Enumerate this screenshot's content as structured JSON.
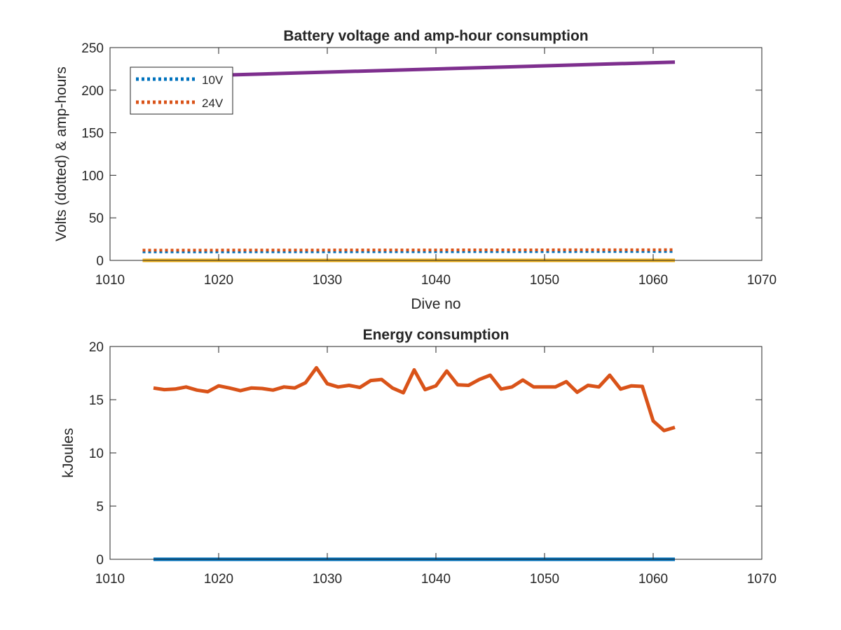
{
  "colors": {
    "blue": "#0072BD",
    "orange": "#D95319",
    "yellow": "#EDB120",
    "purple": "#7E2F8E",
    "axis": "#262626"
  },
  "chart_data": [
    {
      "type": "line",
      "title": "Battery voltage and amp-hour consumption",
      "xlabel": "Dive no",
      "ylabel": "Volts (dotted) & amp-hours",
      "xlim": [
        1010,
        1070
      ],
      "ylim": [
        0,
        250
      ],
      "xticks": [
        1010,
        1020,
        1030,
        1040,
        1050,
        1060,
        1070
      ],
      "yticks": [
        0,
        50,
        100,
        150,
        200,
        250
      ],
      "grid": false,
      "legend": {
        "position": "top-left",
        "entries": [
          "10V",
          "24V"
        ]
      },
      "series": [
        {
          "name": "10V",
          "color": "#0072BD",
          "style": "dotted",
          "x": [
            1013,
            1062
          ],
          "y": [
            10,
            10.5
          ]
        },
        {
          "name": "24V",
          "color": "#D95319",
          "style": "dotted",
          "x": [
            1013,
            1062
          ],
          "y": [
            12,
            12.5
          ]
        },
        {
          "color": "#EDB120",
          "style": "solid",
          "x": [
            1013,
            1062
          ],
          "y": [
            0,
            0
          ]
        },
        {
          "color": "#7E2F8E",
          "style": "solid",
          "x": [
            1013,
            1062
          ],
          "y": [
            215,
            233
          ]
        }
      ]
    },
    {
      "type": "line",
      "title": "Energy consumption",
      "xlabel": "",
      "ylabel": "kJoules",
      "xlim": [
        1010,
        1070
      ],
      "ylim": [
        0,
        20
      ],
      "xticks": [
        1010,
        1020,
        1030,
        1040,
        1050,
        1060,
        1070
      ],
      "yticks": [
        0,
        5,
        10,
        15,
        20
      ],
      "grid": false,
      "series": [
        {
          "color": "#0072BD",
          "style": "solid",
          "x": [
            1014,
            1062
          ],
          "y": [
            0,
            0
          ]
        },
        {
          "color": "#D95319",
          "style": "solid",
          "x": [
            1014,
            1015,
            1016,
            1017,
            1018,
            1019,
            1020,
            1021,
            1022,
            1023,
            1024,
            1025,
            1026,
            1027,
            1028,
            1029,
            1030,
            1031,
            1032,
            1033,
            1034,
            1035,
            1036,
            1037,
            1038,
            1039,
            1040,
            1041,
            1042,
            1043,
            1044,
            1045,
            1046,
            1047,
            1048,
            1049,
            1050,
            1051,
            1052,
            1053,
            1054,
            1055,
            1056,
            1057,
            1058,
            1059,
            1060,
            1061,
            1062
          ],
          "y": [
            16.1,
            15.95,
            16.0,
            16.2,
            15.9,
            15.75,
            16.3,
            16.1,
            15.85,
            16.1,
            16.05,
            15.9,
            16.2,
            16.1,
            16.6,
            18.0,
            16.5,
            16.2,
            16.35,
            16.15,
            16.8,
            16.9,
            16.1,
            15.65,
            17.8,
            15.95,
            16.3,
            17.7,
            16.4,
            16.35,
            16.9,
            17.3,
            16.0,
            16.2,
            16.85,
            16.2,
            16.2,
            16.2,
            16.7,
            15.7,
            16.35,
            16.2,
            17.3,
            16.0,
            16.3,
            16.25,
            13.0,
            12.1,
            12.4
          ]
        }
      ]
    }
  ]
}
